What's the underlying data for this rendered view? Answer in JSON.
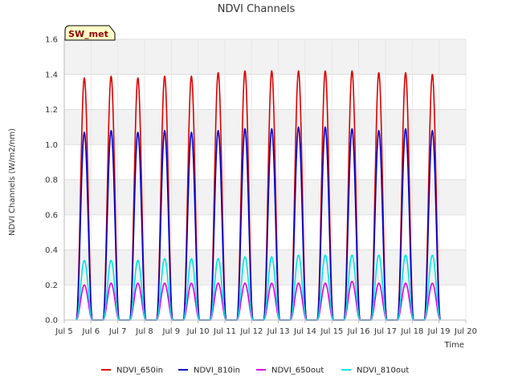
{
  "chart_data": {
    "type": "line",
    "title": "NDVI Channels",
    "xlabel": "Time",
    "ylabel": "NDVI Channels (W/m2/nm)",
    "badge": "SW_met",
    "xlim": [
      5,
      20
    ],
    "ylim": [
      0.0,
      1.6
    ],
    "x_ticks": [
      5,
      6,
      7,
      8,
      9,
      10,
      11,
      12,
      13,
      14,
      15,
      16,
      17,
      18,
      19,
      20
    ],
    "x_tick_labels": [
      "Jul 5",
      "Jul 6",
      "Jul 7",
      "Jul 8",
      "Jul 9",
      "Jul 10",
      "Jul 11",
      "Jul 12",
      "Jul 13",
      "Jul 14",
      "Jul 15",
      "Jul 16",
      "Jul 17",
      "Jul 18",
      "Jul 19",
      "Jul 20"
    ],
    "y_ticks": [
      0.0,
      0.2,
      0.4,
      0.6,
      0.8,
      1.0,
      1.2,
      1.4,
      1.6
    ],
    "y_tick_labels": [
      "0.0",
      "0.2",
      "0.4",
      "0.6",
      "0.8",
      "1.0",
      "1.2",
      "1.4",
      "1.6"
    ],
    "grid": true,
    "legend_position": "bottom",
    "days": [
      5.75,
      6.75,
      7.75,
      8.75,
      9.75,
      10.75,
      11.75,
      12.75,
      13.75,
      14.75,
      15.75,
      16.75,
      17.75,
      18.75
    ],
    "series": [
      {
        "name": "NDVI_650in",
        "color": "#dd0000",
        "daily_peaks": [
          1.38,
          1.39,
          1.38,
          1.39,
          1.39,
          1.41,
          1.42,
          1.42,
          1.42,
          1.42,
          1.42,
          1.41,
          1.41,
          1.4
        ]
      },
      {
        "name": "NDVI_810in",
        "color": "#0000cc",
        "daily_peaks": [
          1.07,
          1.08,
          1.07,
          1.08,
          1.07,
          1.08,
          1.09,
          1.09,
          1.1,
          1.1,
          1.09,
          1.08,
          1.09,
          1.08
        ]
      },
      {
        "name": "NDVI_650out",
        "color": "#dd00dd",
        "daily_peaks": [
          0.2,
          0.21,
          0.21,
          0.21,
          0.21,
          0.21,
          0.21,
          0.21,
          0.21,
          0.21,
          0.22,
          0.21,
          0.21,
          0.21
        ]
      },
      {
        "name": "NDVI_810out",
        "color": "#00e5e5",
        "daily_peaks": [
          0.34,
          0.34,
          0.34,
          0.35,
          0.35,
          0.35,
          0.36,
          0.36,
          0.37,
          0.37,
          0.37,
          0.37,
          0.37,
          0.37
        ]
      }
    ]
  }
}
